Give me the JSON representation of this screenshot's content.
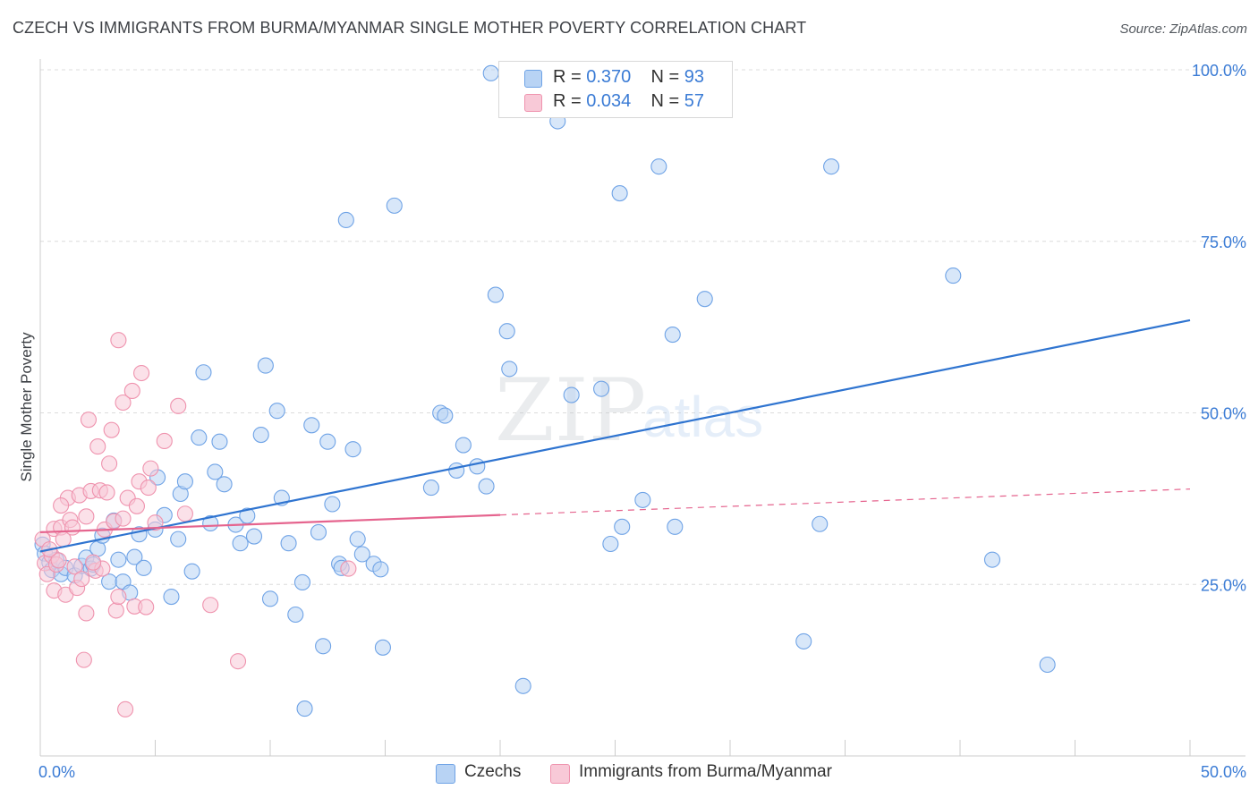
{
  "header": {
    "title": "CZECH VS IMMIGRANTS FROM BURMA/MYANMAR SINGLE MOTHER POVERTY CORRELATION CHART",
    "source": "Source: ZipAtlas.com"
  },
  "watermark": {
    "zip": "ZIP",
    "atlas": "atlas"
  },
  "stats_legend": [
    {
      "r_label": "R = ",
      "r_value": "0.370",
      "n_label": "N = ",
      "n_value": "93",
      "color": "#a9c8f0"
    },
    {
      "r_label": "R = ",
      "r_value": "0.034",
      "n_label": "N = ",
      "n_value": "57",
      "color": "#f6bccd"
    }
  ],
  "chart_data": {
    "type": "scatter",
    "title": "CZECH VS IMMIGRANTS FROM BURMA/MYANMAR SINGLE MOTHER POVERTY CORRELATION CHART",
    "xlabel": "",
    "ylabel": "Single Mother Poverty",
    "xlim": [
      0,
      50
    ],
    "ylim": [
      0,
      100
    ],
    "x_tick_labels": [
      "0.0%",
      "50.0%"
    ],
    "y_ticks": [
      25,
      50,
      75,
      100
    ],
    "y_tick_labels": [
      "25.0%",
      "50.0%",
      "75.0%",
      "100.0%"
    ],
    "grid": true,
    "legend_position": "bottom",
    "series": [
      {
        "name": "Czechs",
        "color": "#6fa3e6",
        "fill": "#b8d3f4",
        "trend": {
          "x": [
            0,
            50
          ],
          "y": [
            29.8,
            63.5
          ],
          "color": "#2f74d0",
          "dashed_from": null
        },
        "points": [
          [
            0.1,
            30.8
          ],
          [
            0.2,
            29.5
          ],
          [
            0.4,
            28.2
          ],
          [
            0.5,
            27.1
          ],
          [
            0.7,
            28.6
          ],
          [
            0.9,
            26.5
          ],
          [
            1.1,
            27.4
          ],
          [
            1.5,
            26.3
          ],
          [
            1.8,
            27.7
          ],
          [
            2.0,
            28.9
          ],
          [
            2.2,
            27.3
          ],
          [
            2.3,
            27.9
          ],
          [
            2.5,
            30.2
          ],
          [
            2.7,
            32.1
          ],
          [
            3.0,
            25.4
          ],
          [
            3.2,
            34.3
          ],
          [
            3.4,
            28.6
          ],
          [
            3.6,
            25.4
          ],
          [
            3.9,
            23.8
          ],
          [
            4.1,
            29.0
          ],
          [
            4.3,
            32.3
          ],
          [
            4.5,
            27.4
          ],
          [
            5.0,
            33.0
          ],
          [
            5.1,
            40.6
          ],
          [
            5.4,
            35.1
          ],
          [
            5.7,
            23.2
          ],
          [
            6.0,
            31.6
          ],
          [
            6.1,
            38.2
          ],
          [
            6.3,
            40.0
          ],
          [
            6.6,
            26.9
          ],
          [
            6.9,
            46.4
          ],
          [
            7.1,
            55.9
          ],
          [
            7.4,
            33.9
          ],
          [
            7.6,
            41.4
          ],
          [
            7.8,
            45.8
          ],
          [
            8.0,
            39.6
          ],
          [
            8.5,
            33.7
          ],
          [
            8.7,
            31.0
          ],
          [
            9.0,
            35.0
          ],
          [
            9.3,
            32.0
          ],
          [
            9.6,
            46.8
          ],
          [
            9.8,
            56.9
          ],
          [
            10.0,
            22.9
          ],
          [
            10.3,
            50.3
          ],
          [
            10.5,
            37.6
          ],
          [
            10.8,
            31.0
          ],
          [
            11.1,
            20.6
          ],
          [
            11.4,
            25.3
          ],
          [
            11.5,
            6.9
          ],
          [
            11.8,
            48.2
          ],
          [
            12.1,
            32.6
          ],
          [
            12.3,
            16.0
          ],
          [
            12.5,
            45.8
          ],
          [
            12.7,
            36.7
          ],
          [
            13.0,
            28.0
          ],
          [
            13.1,
            27.4
          ],
          [
            13.3,
            78.1
          ],
          [
            13.6,
            44.7
          ],
          [
            13.8,
            31.6
          ],
          [
            14.0,
            29.4
          ],
          [
            14.5,
            28.0
          ],
          [
            14.8,
            27.2
          ],
          [
            14.9,
            15.8
          ],
          [
            15.4,
            80.2
          ],
          [
            17.0,
            39.1
          ],
          [
            17.4,
            50.0
          ],
          [
            17.6,
            49.6
          ],
          [
            18.1,
            41.6
          ],
          [
            18.4,
            45.3
          ],
          [
            19.0,
            42.2
          ],
          [
            19.4,
            39.3
          ],
          [
            19.8,
            67.2
          ],
          [
            20.3,
            61.9
          ],
          [
            20.4,
            56.4
          ],
          [
            21.0,
            10.2
          ],
          [
            22.5,
            92.5
          ],
          [
            23.1,
            52.6
          ],
          [
            24.4,
            53.5
          ],
          [
            24.8,
            30.9
          ],
          [
            25.2,
            82.0
          ],
          [
            25.3,
            33.4
          ],
          [
            26.2,
            37.3
          ],
          [
            26.9,
            85.9
          ],
          [
            27.5,
            61.4
          ],
          [
            27.6,
            33.4
          ],
          [
            28.9,
            66.6
          ],
          [
            33.2,
            16.7
          ],
          [
            33.9,
            33.8
          ],
          [
            34.4,
            85.9
          ],
          [
            39.7,
            70.0
          ],
          [
            41.4,
            28.6
          ],
          [
            43.8,
            13.3
          ],
          [
            19.6,
            99.5
          ]
        ]
      },
      {
        "name": "Immigrants from Burma/Myanmar",
        "color": "#ef93ae",
        "fill": "#f8c9d7",
        "trend": {
          "x": [
            0,
            50
          ],
          "y": [
            32.6,
            38.9
          ],
          "color": "#e5648e",
          "dashed_from": 20
        },
        "points": [
          [
            0.1,
            31.6
          ],
          [
            0.2,
            28.1
          ],
          [
            0.3,
            26.5
          ],
          [
            0.5,
            29.2
          ],
          [
            0.6,
            33.1
          ],
          [
            0.6,
            24.1
          ],
          [
            0.7,
            27.9
          ],
          [
            0.8,
            28.5
          ],
          [
            0.9,
            33.3
          ],
          [
            1.0,
            31.6
          ],
          [
            1.1,
            23.5
          ],
          [
            1.2,
            37.6
          ],
          [
            1.3,
            34.4
          ],
          [
            1.4,
            33.3
          ],
          [
            1.6,
            24.5
          ],
          [
            1.7,
            38.0
          ],
          [
            1.9,
            14.0
          ],
          [
            2.0,
            34.9
          ],
          [
            2.0,
            20.8
          ],
          [
            2.1,
            49.0
          ],
          [
            2.2,
            38.6
          ],
          [
            2.4,
            27.0
          ],
          [
            2.5,
            45.1
          ],
          [
            2.6,
            38.7
          ],
          [
            2.7,
            27.3
          ],
          [
            2.8,
            33.0
          ],
          [
            3.0,
            42.6
          ],
          [
            3.1,
            47.5
          ],
          [
            3.2,
            34.2
          ],
          [
            3.3,
            21.2
          ],
          [
            3.4,
            60.6
          ],
          [
            3.6,
            51.5
          ],
          [
            3.8,
            37.6
          ],
          [
            4.0,
            53.2
          ],
          [
            4.1,
            21.8
          ],
          [
            4.2,
            36.4
          ],
          [
            4.3,
            40.0
          ],
          [
            4.4,
            55.8
          ],
          [
            4.6,
            21.7
          ],
          [
            4.8,
            41.9
          ],
          [
            5.0,
            34.0
          ],
          [
            5.4,
            45.9
          ],
          [
            6.0,
            51.0
          ],
          [
            6.3,
            35.3
          ],
          [
            7.4,
            22.0
          ],
          [
            8.6,
            13.8
          ],
          [
            13.4,
            27.3
          ],
          [
            3.7,
            6.8
          ],
          [
            3.4,
            23.2
          ],
          [
            2.9,
            38.4
          ],
          [
            1.5,
            27.6
          ],
          [
            0.4,
            30.1
          ],
          [
            0.9,
            36.5
          ],
          [
            2.3,
            28.2
          ],
          [
            3.6,
            34.6
          ],
          [
            4.7,
            39.1
          ],
          [
            1.8,
            25.8
          ]
        ]
      }
    ]
  },
  "bottom_legend": [
    {
      "label": "Czechs",
      "color": "#b8d3f4",
      "border": "#6fa3e6"
    },
    {
      "label": "Immigrants from Burma/Myanmar",
      "color": "#f8c9d7",
      "border": "#ef93ae"
    }
  ]
}
